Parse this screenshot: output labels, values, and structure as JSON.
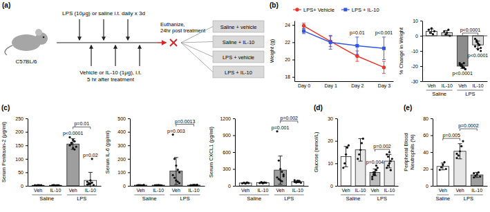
{
  "diagram": {
    "panel": "(a)",
    "strain": "C57BL/6",
    "treatment": "LPS (10μg) or saline i.t. daily x 3d",
    "therapy": [
      "Vehicle or IL-10 (1μg), i.t.",
      "5 hr after treatment"
    ],
    "endpoint": [
      "Euthanize,",
      "24hr post treatment"
    ],
    "groups": [
      "Saline + vehicle",
      "Saline + IL-10",
      "LPS + vehicle",
      "LPS + IL-10"
    ]
  },
  "chart_data": [
    {
      "type": "line",
      "panel": "(b)",
      "categories": [
        "Day 0",
        "Day 1",
        "Day 2",
        "Day 3"
      ],
      "ylabel": "Weight (g)",
      "ylim": [
        17.5,
        24.5
      ],
      "yticks": [
        18,
        20,
        22,
        24
      ],
      "legend": "top",
      "series": [
        {
          "name": "LPS+ Vehicle",
          "color": "#e8382b",
          "marker": "circle",
          "values": [
            23.9,
            22.1,
            20.4,
            19.1
          ],
          "errors": [
            0.3,
            0.6,
            0.6,
            0.7
          ]
        },
        {
          "name": "LPS + IL-10",
          "color": "#3355e0",
          "marker": "square",
          "values": [
            23.3,
            22.0,
            21.6,
            21.3
          ],
          "errors": [
            0.3,
            0.8,
            1.0,
            1.3
          ]
        }
      ],
      "annotations": [
        {
          "text": "p=0.01",
          "at": 2
        },
        {
          "text": "p<0.001",
          "at": 3
        }
      ]
    },
    {
      "type": "bar",
      "categories": [
        "Veh",
        "IL-10",
        "Veh",
        "IL-10"
      ],
      "groups": [
        "Saline",
        "Saline",
        "LPS",
        "LPS"
      ],
      "ylabel": "% Change in Weight",
      "ylim": [
        -30,
        10
      ],
      "yticks": [
        -30,
        -20,
        -10,
        0,
        10
      ],
      "colors": [
        "#ffffff",
        "#d9d9d9",
        "#8c8c8c",
        "#d9d9d9"
      ],
      "values": [
        3,
        2,
        -20,
        -6
      ],
      "errors": [
        1.5,
        1.5,
        1.5,
        2.5
      ],
      "points": [
        [
          4,
          2,
          5,
          1,
          3
        ],
        [
          3,
          1,
          2,
          4,
          0
        ],
        [
          -18,
          -19,
          -20,
          -21,
          -22,
          -19,
          -20,
          -21,
          -18,
          -22
        ],
        [
          -2,
          -4,
          -5,
          -6,
          -8,
          -7,
          -3,
          -9,
          -6,
          -10
        ]
      ],
      "annotations": [
        {
          "text": "p<0.0001",
          "at": 2
        },
        {
          "text": "p<0.0001",
          "at": 3
        },
        {
          "text": "p<0.0001",
          "between": [
            2,
            3
          ]
        }
      ]
    },
    {
      "type": "bar",
      "panel": "(c)",
      "categories": [
        "Veh",
        "IL-10",
        "Veh",
        "IL-10"
      ],
      "groups": [
        "Saline",
        "Saline",
        "LPS",
        "LPS"
      ],
      "ylabel": "Serum Pentraxin-2 (μg/ml)",
      "ylim": [
        0,
        250
      ],
      "yticks": [
        0,
        50,
        100,
        150,
        200,
        250
      ],
      "colors": [
        "#ffffff",
        "#ffffff",
        "#9e9e9e",
        "#ffffff"
      ],
      "values": [
        2,
        2,
        155,
        20
      ],
      "errors": [
        1,
        1,
        20,
        30
      ],
      "points": [
        [
          2,
          1,
          3,
          2,
          2
        ],
        [
          2,
          3,
          1,
          2,
          2
        ],
        [
          150,
          160,
          170,
          135,
          145,
          180,
          155,
          140,
          165
        ],
        [
          5,
          10,
          8,
          100,
          3,
          15,
          6,
          20,
          12
        ]
      ],
      "annotations": [
        {
          "text": "p=0.02",
          "at": 3
        },
        {
          "text": "p<0.0001",
          "at": 2
        },
        {
          "text": "p=0.01",
          "between": [
            2,
            3
          ]
        }
      ]
    },
    {
      "type": "bar",
      "categories": [
        "Veh",
        "IL-10",
        "Veh",
        "IL-10"
      ],
      "groups": [
        "Saline",
        "Saline",
        "LPS",
        "LPS"
      ],
      "ylabel": "Serum IL-6 (pg/ml)",
      "ylim": [
        0,
        500
      ],
      "yticks": [
        0,
        100,
        200,
        300,
        400,
        500
      ],
      "colors": [
        "#ffffff",
        "#ffffff",
        "#9e9e9e",
        "#ffffff"
      ],
      "values": [
        5,
        5,
        110,
        5
      ],
      "errors": [
        3,
        3,
        100,
        3
      ],
      "points": [
        [
          4,
          6,
          5,
          3,
          7
        ],
        [
          5,
          4,
          6,
          5,
          3
        ],
        [
          380,
          200,
          150,
          120,
          100,
          80,
          60,
          40,
          30,
          20
        ],
        [
          5,
          3,
          6,
          4,
          8,
          2,
          5,
          7,
          4
        ]
      ],
      "annotations": [
        {
          "text": "p=0.003",
          "at": 2
        },
        {
          "text": "p=0.0013",
          "between": [
            2,
            3
          ]
        }
      ]
    },
    {
      "type": "bar",
      "categories": [
        "Veh",
        "IL-10",
        "Veh",
        "IL-10"
      ],
      "groups": [
        "Saline",
        "Saline",
        "LPS",
        "LPS"
      ],
      "ylabel": "Serum CXCL1 (pg/ml)",
      "ylim": [
        0,
        1200
      ],
      "yticks": [
        0,
        300,
        600,
        900,
        1200
      ],
      "colors": [
        "#ffffff",
        "#ffffff",
        "#9e9e9e",
        "#ffffff"
      ],
      "values": [
        50,
        55,
        280,
        75
      ],
      "errors": [
        10,
        12,
        250,
        20
      ],
      "points": [
        [
          45,
          55,
          40,
          60,
          50
        ],
        [
          50,
          65,
          45,
          60,
          55
        ],
        [
          970,
          450,
          300,
          250,
          200,
          150,
          120,
          100,
          80,
          170
        ],
        [
          70,
          60,
          90,
          80,
          55,
          100,
          65,
          75,
          85
        ]
      ],
      "annotations": [
        {
          "text": "p=0.001",
          "at": 2
        },
        {
          "text": "p=0.002",
          "between": [
            2,
            3
          ]
        }
      ]
    },
    {
      "type": "bar",
      "panel": "(d)",
      "categories": [
        "Veh",
        "IL-10",
        "Veh",
        "IL-10"
      ],
      "groups": [
        "Saline",
        "Saline",
        "LPS",
        "LPS"
      ],
      "ylabel": "Glucose (mmol/L)",
      "ylim": [
        0,
        30
      ],
      "yticks": [
        0,
        10,
        20,
        30
      ],
      "colors": [
        "#ffffff",
        "#e6e6e6",
        "#bdbdbd",
        "#e6e6e6"
      ],
      "values": [
        13,
        16,
        6,
        11
      ],
      "errors": [
        4.5,
        5,
        1.5,
        3
      ],
      "points": [
        [
          8,
          10,
          14,
          17,
          18
        ],
        [
          12,
          14,
          16,
          19,
          21
        ],
        [
          4,
          5,
          6,
          7,
          8,
          3,
          6,
          5,
          9
        ],
        [
          8,
          9,
          10,
          11,
          12,
          14,
          13,
          15,
          7
        ]
      ],
      "annotations": [
        {
          "text": "p=0.004",
          "at": 2
        },
        {
          "text": "p=0.002",
          "between": [
            2,
            3
          ]
        }
      ]
    },
    {
      "type": "bar",
      "panel": "(e)",
      "categories": [
        "Veh",
        "Veh",
        "IL-10"
      ],
      "groups": [
        "Saline",
        "LPS",
        "LPS"
      ],
      "ylabel": [
        "Peripheral Blood",
        "Neutrophils (%)"
      ],
      "ylim": [
        0,
        80
      ],
      "yticks": [
        0,
        20,
        40,
        60,
        80
      ],
      "colors": [
        "#ffffff",
        "#e6e6e6",
        "#9e9e9e"
      ],
      "values": [
        23,
        41,
        13
      ],
      "errors": [
        4,
        9,
        3
      ],
      "points": [
        [
          19,
          22,
          25,
          28,
          20
        ],
        [
          33,
          36,
          41,
          47,
          53,
          38
        ],
        [
          10,
          12,
          14,
          16,
          11,
          15
        ]
      ],
      "annotations": [
        {
          "text": "p=0.005",
          "between": [
            0,
            1
          ]
        },
        {
          "text": "p=0.0002",
          "between": [
            1,
            2
          ]
        }
      ]
    }
  ]
}
